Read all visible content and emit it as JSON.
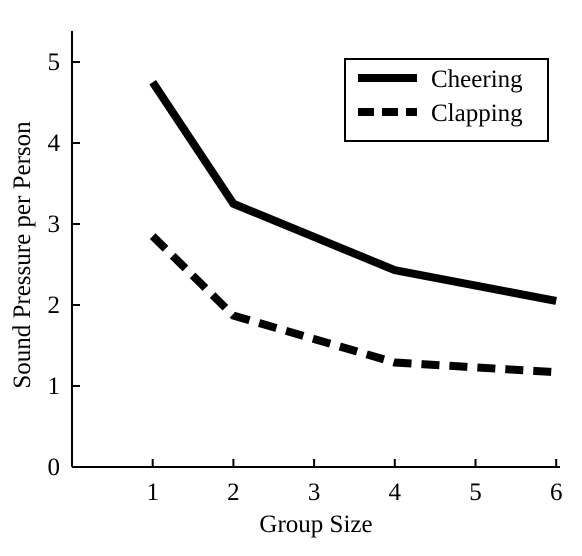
{
  "chart_data": {
    "type": "line",
    "title": "",
    "xlabel": "Group Size",
    "ylabel": "Sound Pressure per Person",
    "x": [
      1,
      2,
      4,
      6
    ],
    "xticks": [
      1,
      2,
      3,
      4,
      5,
      6
    ],
    "yticks": [
      0,
      1,
      2,
      3,
      4,
      5
    ],
    "xlim": [
      0,
      6.2
    ],
    "ylim": [
      0,
      5.4
    ],
    "grid": false,
    "legend_position": "top-right",
    "series": [
      {
        "name": "Cheering",
        "values": [
          4.75,
          3.25,
          2.43,
          2.05
        ],
        "style": "solid",
        "color": "#000000"
      },
      {
        "name": "Clapping",
        "values": [
          2.85,
          1.87,
          1.29,
          1.17
        ],
        "style": "dashed",
        "color": "#000000"
      }
    ]
  }
}
